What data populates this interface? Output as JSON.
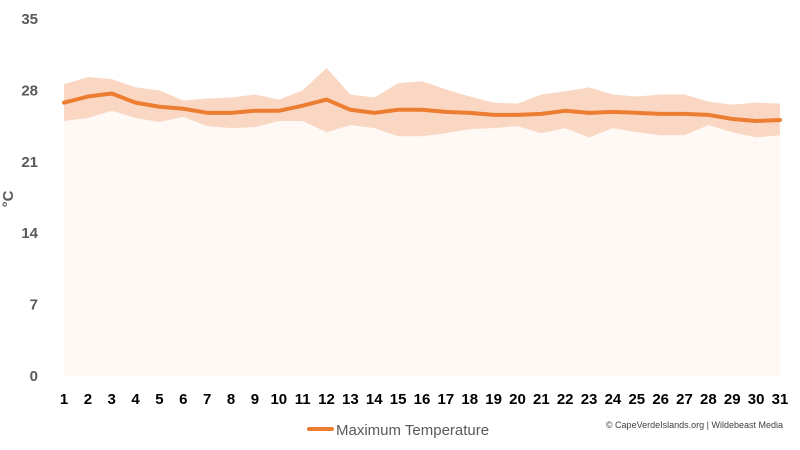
{
  "chart_data": {
    "type": "line",
    "xlabel": "",
    "ylabel": "°C",
    "ylim": [
      0,
      35
    ],
    "yticks": [
      0,
      7,
      14,
      21,
      28,
      35
    ],
    "categories": [
      "1",
      "2",
      "3",
      "4",
      "5",
      "6",
      "7",
      "8",
      "9",
      "10",
      "11",
      "12",
      "13",
      "14",
      "15",
      "16",
      "17",
      "18",
      "19",
      "20",
      "21",
      "22",
      "23",
      "24",
      "25",
      "26",
      "27",
      "28",
      "29",
      "30",
      "31"
    ],
    "series": [
      {
        "name": "Maximum Temperature",
        "color": "#ED7D31",
        "values": [
          26.8,
          27.4,
          27.7,
          26.8,
          26.4,
          26.2,
          25.8,
          25.8,
          26.0,
          26.0,
          26.5,
          27.1,
          26.1,
          25.8,
          26.1,
          26.1,
          25.9,
          25.8,
          25.6,
          25.6,
          25.7,
          26.0,
          25.8,
          25.9,
          25.8,
          25.7,
          25.7,
          25.6,
          25.2,
          25.0,
          25.1
        ]
      }
    ],
    "range_band": {
      "color": "#FAD7C3",
      "lower": [
        25.0,
        25.3,
        26.0,
        25.3,
        24.9,
        25.4,
        24.5,
        24.3,
        24.4,
        25.0,
        25.0,
        23.9,
        24.6,
        24.3,
        23.5,
        23.5,
        23.8,
        24.2,
        24.3,
        24.5,
        23.8,
        24.3,
        23.4,
        24.3,
        23.9,
        23.6,
        23.6,
        24.6,
        23.9,
        23.4,
        23.6
      ],
      "upper": [
        28.6,
        29.3,
        29.1,
        28.3,
        28.0,
        27.0,
        27.2,
        27.3,
        27.6,
        27.1,
        28.0,
        30.2,
        27.6,
        27.3,
        28.7,
        28.9,
        28.1,
        27.4,
        26.8,
        26.7,
        27.6,
        27.9,
        28.3,
        27.6,
        27.4,
        27.6,
        27.6,
        26.9,
        26.6,
        26.8,
        26.7
      ]
    },
    "legend": {
      "position": "bottom",
      "label": "Maximum Temperature"
    },
    "grid": false
  },
  "credit": "© CapeVerdeIslands.org | Wildebeast Media"
}
